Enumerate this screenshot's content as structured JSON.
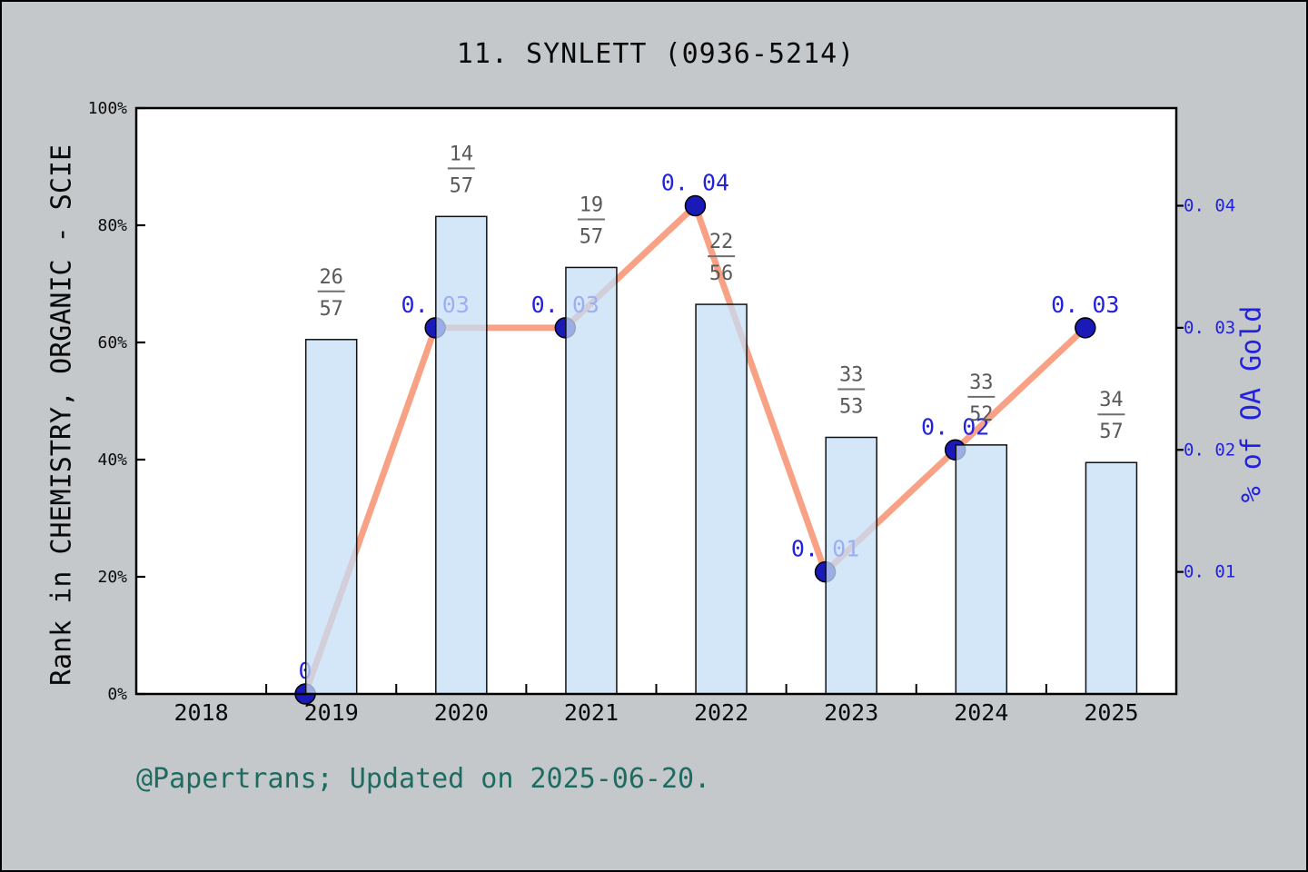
{
  "title_prefix": "11.",
  "footer": {
    "text": "@Papertrans; Updated on 2025-06-20."
  },
  "colors": {
    "background": "#c5c8cb",
    "plot_background": "#ffffff",
    "frame": "#000000",
    "bar_fill": "#c5dff7",
    "bar_border": "#111111",
    "line": "#f9a184",
    "marker_fill": "#1a1ab8",
    "marker_edge": "#000000",
    "value_label": "#2323dd",
    "right_axis_text": "#2222dd",
    "fraction_text": "#595959",
    "fraction_dash": "#6e6e6e",
    "axis_text": "#0a0a0a",
    "footer_text": "#1e6b61"
  },
  "chart_data": {
    "type": "bar+line combo",
    "title": "11. SYNLETT (0936-5214)",
    "categories": [
      "2018",
      "2019",
      "2020",
      "2021",
      "2022",
      "2023",
      "2024",
      "2025"
    ],
    "grid": false,
    "legend": "none",
    "left_axis": {
      "label": "Rank in CHEMISTRY, ORGANIC - SCIE",
      "ticks": [
        "0%",
        "20%",
        "40%",
        "60%",
        "80%",
        "100%"
      ],
      "tick_values": [
        0,
        20,
        40,
        60,
        80,
        100
      ],
      "min": 0,
      "max": 100
    },
    "right_axis": {
      "label": "% of OA Gold",
      "ticks": [
        "0. 01",
        "0. 02",
        "0. 03",
        "0. 04"
      ],
      "tick_values": [
        0.01,
        0.02,
        0.03,
        0.04
      ],
      "min": 0,
      "max": 0.048
    },
    "bar_series": {
      "name": "Rank in CHEMISTRY, ORGANIC - SCIE",
      "axis": "left",
      "values_pct": [
        null,
        60.5,
        81.5,
        72.8,
        66.5,
        43.8,
        42.5,
        39.5
      ],
      "fractions": [
        null,
        [
          "26",
          "57"
        ],
        [
          "14",
          "57"
        ],
        [
          "19",
          "57"
        ],
        [
          "22",
          "56"
        ],
        [
          "33",
          "53"
        ],
        [
          "33",
          "52"
        ],
        [
          "34",
          "57"
        ]
      ]
    },
    "line_series": {
      "name": "% of OA Gold",
      "axis": "right",
      "values": [
        null,
        0,
        0.03,
        0.03,
        0.04,
        0.01,
        0.02,
        0.03
      ],
      "point_labels": [
        null,
        "0",
        "0. 03",
        "0. 03",
        "0. 04",
        "0. 01",
        "0. 02",
        "0. 03"
      ],
      "x_offset_fraction": -0.2
    }
  }
}
